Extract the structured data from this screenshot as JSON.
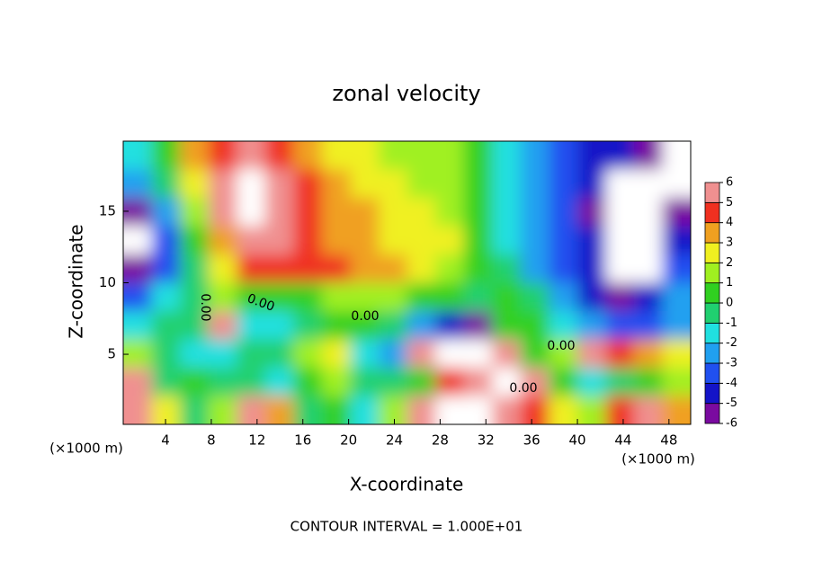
{
  "chart_data": {
    "type": "heatmap",
    "title": "zonal velocity",
    "x_label": "X-coordinate",
    "y_label": "Z-coordinate",
    "x_unit": "(×1000 m)",
    "y_unit": "(×1000 m)",
    "xlim": [
      0.3,
      49.9
    ],
    "ylim": [
      0.1,
      19.9
    ],
    "xticks": [
      4,
      8,
      12,
      16,
      20,
      24,
      28,
      32,
      36,
      40,
      44,
      48
    ],
    "yticks": [
      5,
      10,
      15
    ],
    "z": [
      [
        -2,
        0.5,
        3,
        4.5,
        5,
        4.5,
        3.5,
        2.5,
        2,
        1.5,
        1,
        1,
        0.5,
        -1.5,
        -3,
        -4,
        -5,
        -5,
        -5.5,
        -6.5
      ],
      [
        -3,
        -1,
        2,
        5,
        7,
        5,
        4,
        3,
        2.5,
        2,
        1.5,
        1,
        0.5,
        -1.5,
        -3,
        -4,
        -5,
        -7,
        -7,
        -7
      ],
      [
        -6,
        -3,
        1,
        5,
        7,
        5.5,
        4,
        3.5,
        3,
        2.5,
        2,
        1.5,
        0.5,
        -1.5,
        -3,
        -4,
        -5.5,
        -7,
        -7,
        -6
      ],
      [
        -7,
        -4,
        0,
        3.5,
        5.5,
        5,
        4,
        3.5,
        3,
        2.5,
        2.5,
        2,
        0.5,
        -1.5,
        -3,
        -4,
        -5,
        -6.5,
        -7,
        -5
      ],
      [
        -6,
        -4,
        -1,
        2,
        4,
        4.5,
        4.5,
        4,
        3.5,
        3,
        2.5,
        1.5,
        0.5,
        -1,
        -3,
        -4,
        -5,
        -7,
        -7,
        -4
      ],
      [
        -4,
        -2,
        -1,
        1,
        0.5,
        0,
        0.5,
        1,
        1.5,
        1,
        0.5,
        0,
        -0.5,
        0,
        -1,
        -3,
        -5,
        -6,
        -5,
        -3
      ],
      [
        -2,
        -0.5,
        -1,
        6,
        -2,
        -2,
        -1,
        0.5,
        0,
        -1,
        -3,
        -5,
        -6,
        0,
        0.5,
        -1.5,
        -3,
        -4,
        -4,
        -3
      ],
      [
        1,
        -1,
        -1.5,
        -2,
        -1,
        -0.5,
        1.5,
        2,
        -2,
        -3,
        5,
        7,
        7,
        5,
        0,
        1.5,
        5,
        4,
        3,
        2
      ],
      [
        5,
        -1,
        0,
        -0.5,
        -1,
        -2,
        0.5,
        1,
        -1,
        -1,
        0,
        4,
        5,
        7,
        5,
        0,
        -1.5,
        -0.5,
        0,
        1
      ],
      [
        6,
        2,
        -1,
        1,
        5,
        3,
        -1,
        0,
        -2,
        1,
        5,
        7,
        7,
        6,
        4,
        2,
        1,
        4,
        5,
        3
      ]
    ],
    "colorbar_ticks": [
      -6,
      -5,
      -4,
      -3,
      -2,
      -1,
      0,
      1,
      2,
      3,
      4,
      5,
      6
    ],
    "colors": [
      "#7a0aa0",
      "#1414c8",
      "#2050f0",
      "#20a0f0",
      "#20e0e0",
      "#20d070",
      "#30d020",
      "#a0f020",
      "#f0f020",
      "#f0a020",
      "#f03020",
      "#f09090"
    ],
    "contour_labels": [
      "0.00",
      "0.00",
      "0.00",
      "0.00",
      "0.00"
    ],
    "annotation": "CONTOUR INTERVAL = 1.000E+01"
  }
}
